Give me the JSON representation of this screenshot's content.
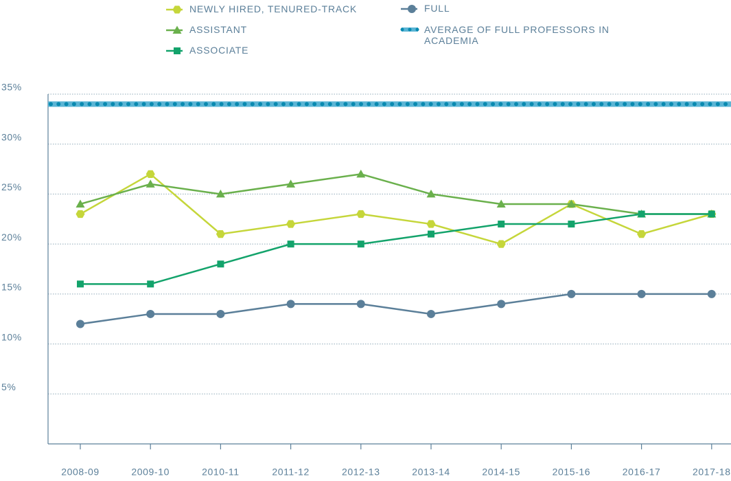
{
  "chart_data": {
    "type": "line",
    "categories": [
      "2008-09",
      "2009-10",
      "2010-11",
      "2011-12",
      "2012-13",
      "2013-14",
      "2014-15",
      "2015-16",
      "2016-17",
      "2017-18"
    ],
    "series": [
      {
        "name": "NEWLY HIRED, TENURED-TRACK",
        "color": "#c5d63a",
        "marker": "hexagon",
        "values": [
          23,
          27,
          21,
          22,
          23,
          22,
          20,
          24,
          21,
          23
        ]
      },
      {
        "name": "ASSISTANT",
        "color": "#6ab04c",
        "marker": "triangle",
        "values": [
          24,
          26,
          25,
          26,
          27,
          25,
          24,
          24,
          23,
          23
        ]
      },
      {
        "name": "ASSOCIATE",
        "color": "#13a36b",
        "marker": "square",
        "values": [
          16,
          16,
          18,
          20,
          20,
          21,
          22,
          22,
          23,
          23
        ]
      },
      {
        "name": "FULL",
        "color": "#5b7f99",
        "marker": "circle",
        "values": [
          12,
          13,
          13,
          14,
          14,
          13,
          14,
          15,
          15,
          15
        ]
      }
    ],
    "reference_line": {
      "name": "AVERAGE OF FULL PROFESSORS IN ACADEMIA",
      "value": 34,
      "color": "#5bb5d5",
      "dot_color": "#0a8ab0"
    },
    "ylim": [
      0,
      35
    ],
    "yticks": [
      {
        "value": 5,
        "label": "5%"
      },
      {
        "value": 10,
        "label": "10%"
      },
      {
        "value": 15,
        "label": "15%"
      },
      {
        "value": 20,
        "label": "20%"
      },
      {
        "value": 25,
        "label": "25%"
      },
      {
        "value": 30,
        "label": "30%"
      },
      {
        "value": 35,
        "label": "35%"
      }
    ],
    "grid": true
  }
}
